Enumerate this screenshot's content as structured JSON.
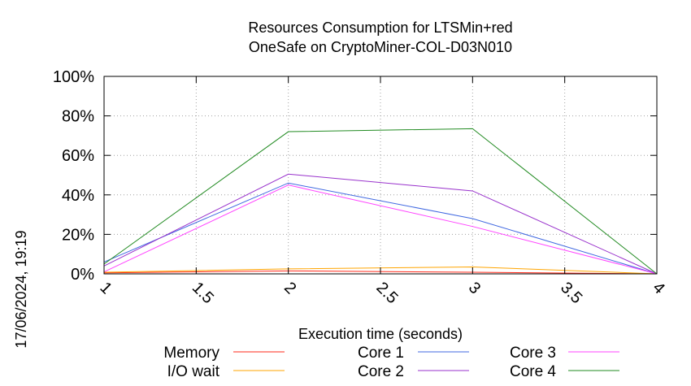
{
  "chart_data": {
    "type": "line",
    "title": [
      "Resources Consumption for LTSMin+red",
      "OneSafe on CryptoMiner-COL-D03N010"
    ],
    "xlabel": "Execution time (seconds)",
    "ylabel": "",
    "side_label": "17/06/2024, 19:19",
    "xlim": [
      1,
      4
    ],
    "ylim": [
      0,
      100
    ],
    "x_ticks": [
      1,
      1.5,
      2,
      2.5,
      3,
      3.5,
      4
    ],
    "x_tick_labels": [
      "1",
      "1.5",
      "2",
      "2.5",
      "3",
      "3.5",
      "4"
    ],
    "y_ticks": [
      0,
      20,
      40,
      60,
      80,
      100
    ],
    "y_tick_labels": [
      "0%",
      "20%",
      "40%",
      "60%",
      "80%",
      "100%"
    ],
    "grid": true,
    "legend_position": "bottom",
    "x": [
      1,
      2,
      3,
      4
    ],
    "series": [
      {
        "name": "Memory",
        "color": "#ff2a1a",
        "values": [
          0.5,
          1.5,
          0.8,
          0
        ]
      },
      {
        "name": "I/O wait",
        "color": "#ffa500",
        "values": [
          0.8,
          2.5,
          3.5,
          0
        ]
      },
      {
        "name": "Core 1",
        "color": "#4169e1",
        "values": [
          6,
          46,
          28,
          0
        ]
      },
      {
        "name": "Core 2",
        "color": "#9932cc",
        "values": [
          4,
          50.5,
          42,
          0
        ]
      },
      {
        "name": "Core 3",
        "color": "#ff44ff",
        "values": [
          1,
          45,
          24,
          0
        ]
      },
      {
        "name": "Core 4",
        "color": "#228b22",
        "values": [
          5,
          72,
          73.5,
          0
        ]
      }
    ]
  }
}
